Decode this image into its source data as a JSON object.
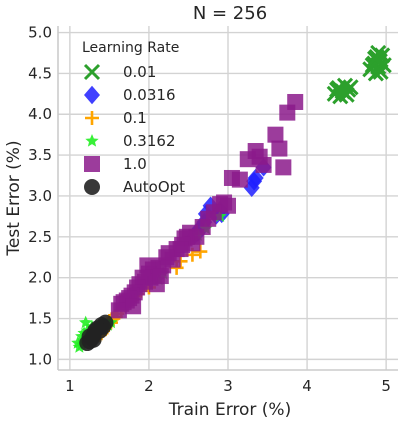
{
  "chart_data": {
    "type": "scatter",
    "title": "N = 256",
    "xlabel": "Train Error (%)",
    "ylabel": "Test Error (%)",
    "xlim": [
      0.85,
      5.15
    ],
    "ylim": [
      0.87,
      5.08
    ],
    "x_ticks": [
      "1",
      "2",
      "3",
      "4",
      "5"
    ],
    "y_ticks": [
      "1.0",
      "1.5",
      "2.0",
      "2.5",
      "3.0",
      "3.5",
      "4.0",
      "4.5",
      "5.0"
    ],
    "grid": true,
    "legend_title": "Learning Rate",
    "legend_position": "upper-left",
    "series": [
      {
        "name": "0.01",
        "color": "#2ca02c",
        "marker": "x",
        "points": [
          [
            4.35,
            4.25
          ],
          [
            4.4,
            4.32
          ],
          [
            4.45,
            4.28
          ],
          [
            4.48,
            4.35
          ],
          [
            4.52,
            4.3
          ],
          [
            4.42,
            4.22
          ],
          [
            4.38,
            4.3
          ],
          [
            4.5,
            4.24
          ],
          [
            4.55,
            4.33
          ],
          [
            4.8,
            4.55
          ],
          [
            4.85,
            4.62
          ],
          [
            4.88,
            4.7
          ],
          [
            4.9,
            4.58
          ],
          [
            4.92,
            4.65
          ],
          [
            4.87,
            4.5
          ],
          [
            4.95,
            4.72
          ],
          [
            4.83,
            4.6
          ],
          [
            4.9,
            4.75
          ],
          [
            4.97,
            4.6
          ],
          [
            4.86,
            4.68
          ],
          [
            4.93,
            4.52
          ]
        ]
      },
      {
        "name": "0.0316",
        "color": "#1f1fff",
        "marker": "diamond",
        "points": [
          [
            3.45,
            3.35
          ],
          [
            3.35,
            3.22
          ],
          [
            3.3,
            3.1
          ],
          [
            3.33,
            3.18
          ],
          [
            2.92,
            2.78
          ],
          [
            2.9,
            2.83
          ],
          [
            2.85,
            2.76
          ],
          [
            2.78,
            2.88
          ],
          [
            2.72,
            2.78
          ],
          [
            2.67,
            2.62
          ],
          [
            2.62,
            2.55
          ],
          [
            2.7,
            2.68
          ],
          [
            2.58,
            2.52
          ],
          [
            2.64,
            2.6
          ]
        ]
      },
      {
        "name": "0.1",
        "color": "#ffa500",
        "marker": "plus",
        "points": [
          [
            2.65,
            2.32
          ],
          [
            2.55,
            2.28
          ],
          [
            2.4,
            2.2
          ],
          [
            2.35,
            2.12
          ],
          [
            2.0,
            1.88
          ],
          [
            1.9,
            1.84
          ],
          [
            1.85,
            1.8
          ],
          [
            1.82,
            1.78
          ],
          [
            1.75,
            1.72
          ],
          [
            1.7,
            1.66
          ],
          [
            1.65,
            1.6
          ],
          [
            1.6,
            1.56
          ],
          [
            1.55,
            1.5
          ],
          [
            1.52,
            1.45
          ],
          [
            1.48,
            1.42
          ],
          [
            1.45,
            1.4
          ],
          [
            1.42,
            1.35
          ],
          [
            1.4,
            1.32
          ],
          [
            1.38,
            1.3
          ],
          [
            1.5,
            1.47
          ],
          [
            1.58,
            1.52
          ]
        ]
      },
      {
        "name": "0.3162",
        "color": "#22ee22",
        "marker": "star",
        "points": [
          [
            2.9,
            2.75
          ],
          [
            2.72,
            2.6
          ],
          [
            2.62,
            2.52
          ],
          [
            2.18,
            2.05
          ],
          [
            2.12,
            1.98
          ],
          [
            1.52,
            1.45
          ],
          [
            1.48,
            1.42
          ],
          [
            1.42,
            1.38
          ],
          [
            1.35,
            1.32
          ],
          [
            1.3,
            1.28
          ],
          [
            1.25,
            1.25
          ],
          [
            1.2,
            1.22
          ],
          [
            1.15,
            1.18
          ],
          [
            1.12,
            1.15
          ],
          [
            1.18,
            1.32
          ],
          [
            1.22,
            1.35
          ],
          [
            1.1,
            1.2
          ],
          [
            1.15,
            1.28
          ],
          [
            1.2,
            1.45
          ],
          [
            1.28,
            1.4
          ]
        ]
      },
      {
        "name": "1.0",
        "color": "#8b1a8b",
        "marker": "square",
        "points": [
          [
            3.85,
            4.15
          ],
          [
            3.75,
            4.02
          ],
          [
            3.6,
            3.75
          ],
          [
            3.65,
            3.58
          ],
          [
            3.7,
            3.35
          ],
          [
            3.45,
            3.38
          ],
          [
            3.4,
            3.48
          ],
          [
            3.35,
            3.55
          ],
          [
            3.25,
            3.45
          ],
          [
            3.05,
            3.22
          ],
          [
            3.15,
            3.2
          ],
          [
            3.0,
            2.88
          ],
          [
            2.95,
            2.92
          ],
          [
            2.9,
            2.9
          ],
          [
            2.82,
            2.8
          ],
          [
            2.75,
            2.72
          ],
          [
            2.68,
            2.62
          ],
          [
            2.6,
            2.5
          ],
          [
            2.55,
            2.42
          ],
          [
            2.52,
            2.55
          ],
          [
            2.48,
            2.5
          ],
          [
            2.45,
            2.48
          ],
          [
            2.42,
            2.4
          ],
          [
            2.4,
            2.35
          ],
          [
            2.35,
            2.35
          ],
          [
            2.3,
            2.22
          ],
          [
            2.25,
            2.3
          ],
          [
            2.22,
            2.25
          ],
          [
            2.18,
            2.15
          ],
          [
            2.12,
            2.12
          ],
          [
            2.05,
            2.1
          ],
          [
            2.0,
            2.05
          ],
          [
            1.98,
            2.15
          ],
          [
            2.02,
            2.0
          ],
          [
            1.95,
            1.95
          ],
          [
            1.92,
            2.0
          ],
          [
            1.88,
            1.92
          ],
          [
            1.85,
            1.88
          ],
          [
            1.82,
            1.82
          ],
          [
            1.78,
            1.78
          ],
          [
            1.75,
            1.75
          ],
          [
            1.72,
            1.72
          ],
          [
            1.68,
            1.7
          ],
          [
            1.65,
            1.68
          ],
          [
            1.62,
            1.6
          ],
          [
            2.1,
            1.92
          ],
          [
            1.8,
            1.65
          ],
          [
            2.15,
            2.02
          ]
        ]
      },
      {
        "name": "AutoOpt",
        "color": "#222222",
        "marker": "circle",
        "points": [
          [
            1.45,
            1.45
          ],
          [
            1.4,
            1.42
          ],
          [
            1.35,
            1.38
          ],
          [
            1.32,
            1.35
          ],
          [
            1.3,
            1.3
          ],
          [
            1.28,
            1.26
          ],
          [
            1.25,
            1.22
          ],
          [
            1.22,
            1.2
          ],
          [
            1.25,
            1.28
          ],
          [
            1.3,
            1.24
          ],
          [
            1.42,
            1.4
          ],
          [
            1.38,
            1.35
          ]
        ]
      }
    ]
  }
}
